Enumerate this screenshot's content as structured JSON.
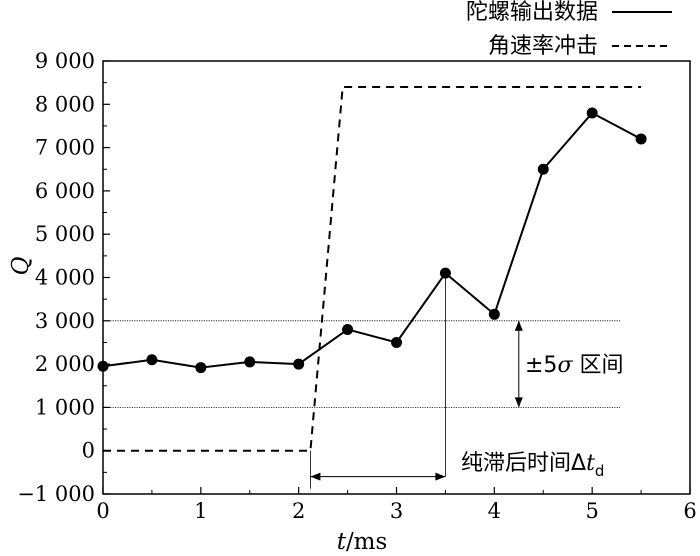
{
  "chart_data": {
    "type": "line",
    "xlabel": "t/ms",
    "ylabel": "Q",
    "xlim": [
      0,
      6
    ],
    "ylim": [
      -1000,
      9000
    ],
    "x_ticks": [
      0,
      1,
      2,
      3,
      4,
      5,
      6
    ],
    "x_tick_labels": [
      "0",
      "1",
      "2",
      "3",
      "4",
      "5",
      "6"
    ],
    "y_ticks": [
      -1000,
      0,
      1000,
      2000,
      3000,
      4000,
      5000,
      6000,
      7000,
      8000,
      9000
    ],
    "y_tick_labels": [
      "−1 000",
      "0",
      "1 000",
      "2 000",
      "3 000",
      "4 000",
      "5 000",
      "6 000",
      "7 000",
      "8 000",
      "9 000"
    ],
    "grid": false,
    "legend_position": "top-right",
    "series": [
      {
        "name": "陀螺输出数据",
        "style": "solid",
        "markers": true,
        "x": [
          0,
          0.5,
          1,
          1.5,
          2,
          2.5,
          3,
          3.5,
          4,
          4.5,
          5,
          5.5
        ],
        "y": [
          1950,
          2100,
          1920,
          2050,
          2000,
          2800,
          2500,
          4100,
          3150,
          6500,
          7800,
          7200
        ]
      },
      {
        "name": "角速率冲击",
        "style": "dashed",
        "markers": false,
        "x": [
          0,
          2.12,
          2.45,
          5.5
        ],
        "y": [
          0,
          0,
          8400,
          8400
        ]
      }
    ],
    "reference_lines": [
      {
        "orientation": "horizontal",
        "y": 3000
      },
      {
        "orientation": "horizontal",
        "y": 1000
      },
      {
        "orientation": "vertical",
        "x": 3.5,
        "y_range": [
          -600,
          4100
        ]
      }
    ],
    "annotations": [
      {
        "text_main": "±5",
        "text_symbol": "σ",
        "text_rest": " 区间",
        "type": "vertical-span",
        "x": 4.25,
        "y_range": [
          1000,
          3000
        ]
      },
      {
        "text_main": "纯滞后时间Δ",
        "text_italic": "t",
        "text_sub": "d",
        "type": "horizontal-span",
        "x_range": [
          2.12,
          3.5
        ],
        "y": -600
      }
    ]
  }
}
